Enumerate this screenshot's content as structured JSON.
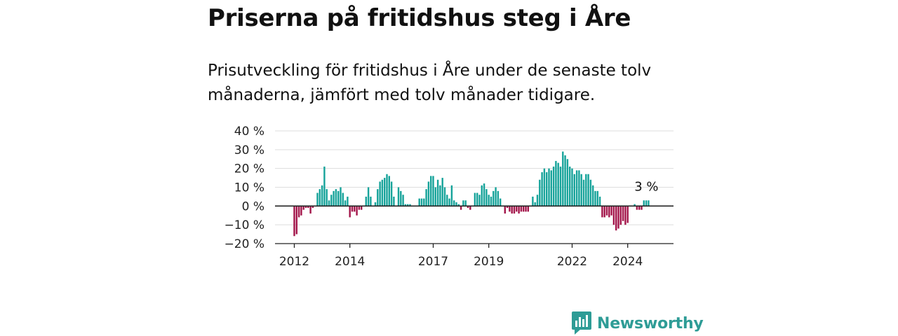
{
  "header": {
    "title": "Priserna på fritidshus steg i Åre",
    "subtitle": "Prisutveckling för fritidshus i Åre under de senaste tolv månaderna, jämfört med tolv månader tidigare."
  },
  "brand": {
    "name": "Newsworthy",
    "color": "#2e9c96",
    "icon": "bar-chart-speech-bubble-icon"
  },
  "colors": {
    "positive": "#16a39a",
    "negative": "#a3154a",
    "grid": "#dddddd",
    "axis": "#222222"
  },
  "chart_data": {
    "type": "bar",
    "title": "",
    "xlabel": "",
    "ylabel": "",
    "ylim": [
      -20,
      40
    ],
    "yticks": [
      40,
      30,
      20,
      10,
      0,
      -10,
      -20
    ],
    "ytick_labels": [
      "40 %",
      "30 %",
      "20 %",
      "10 %",
      "0 %",
      "−10 %",
      "−20 %"
    ],
    "xticks": [
      "2012",
      "2014",
      "2017",
      "2019",
      "2022",
      "2024"
    ],
    "grid": true,
    "start": "2012-01",
    "frequency": "monthly",
    "annotation": {
      "label": "3 %",
      "value": 3
    },
    "values": [
      -16,
      -15,
      -6,
      -5,
      -2,
      -1,
      -1,
      -4,
      -1,
      0,
      7,
      9,
      11,
      21,
      9,
      3,
      6,
      8,
      9,
      8,
      10,
      7,
      3,
      5,
      -6,
      -3,
      -3,
      -5,
      -2,
      -2,
      0,
      5,
      10,
      5,
      0,
      2,
      9,
      13,
      14,
      15,
      17,
      16,
      13,
      5,
      0,
      10,
      8,
      6,
      1,
      1,
      1,
      0,
      0,
      0,
      4,
      4,
      4,
      9,
      13,
      16,
      16,
      10,
      14,
      11,
      15,
      10,
      6,
      4,
      11,
      3,
      2,
      1,
      -2,
      3,
      3,
      -1,
      -2,
      0,
      7,
      7,
      6,
      11,
      12,
      9,
      6,
      5,
      8,
      10,
      8,
      4,
      0,
      -4,
      -1,
      -3,
      -4,
      -4,
      -3,
      -4,
      -3,
      -3,
      -3,
      -3,
      0,
      5,
      2,
      6,
      14,
      18,
      20,
      18,
      20,
      19,
      21,
      24,
      23,
      21,
      29,
      27,
      25,
      21,
      20,
      17,
      19,
      19,
      17,
      14,
      17,
      17,
      14,
      11,
      8,
      8,
      5,
      -6,
      -6,
      -5,
      -6,
      -5,
      -10,
      -13,
      -12,
      -10,
      -8,
      -10,
      -9,
      0,
      0,
      1,
      -2,
      -2,
      -2,
      3,
      3,
      3
    ]
  }
}
